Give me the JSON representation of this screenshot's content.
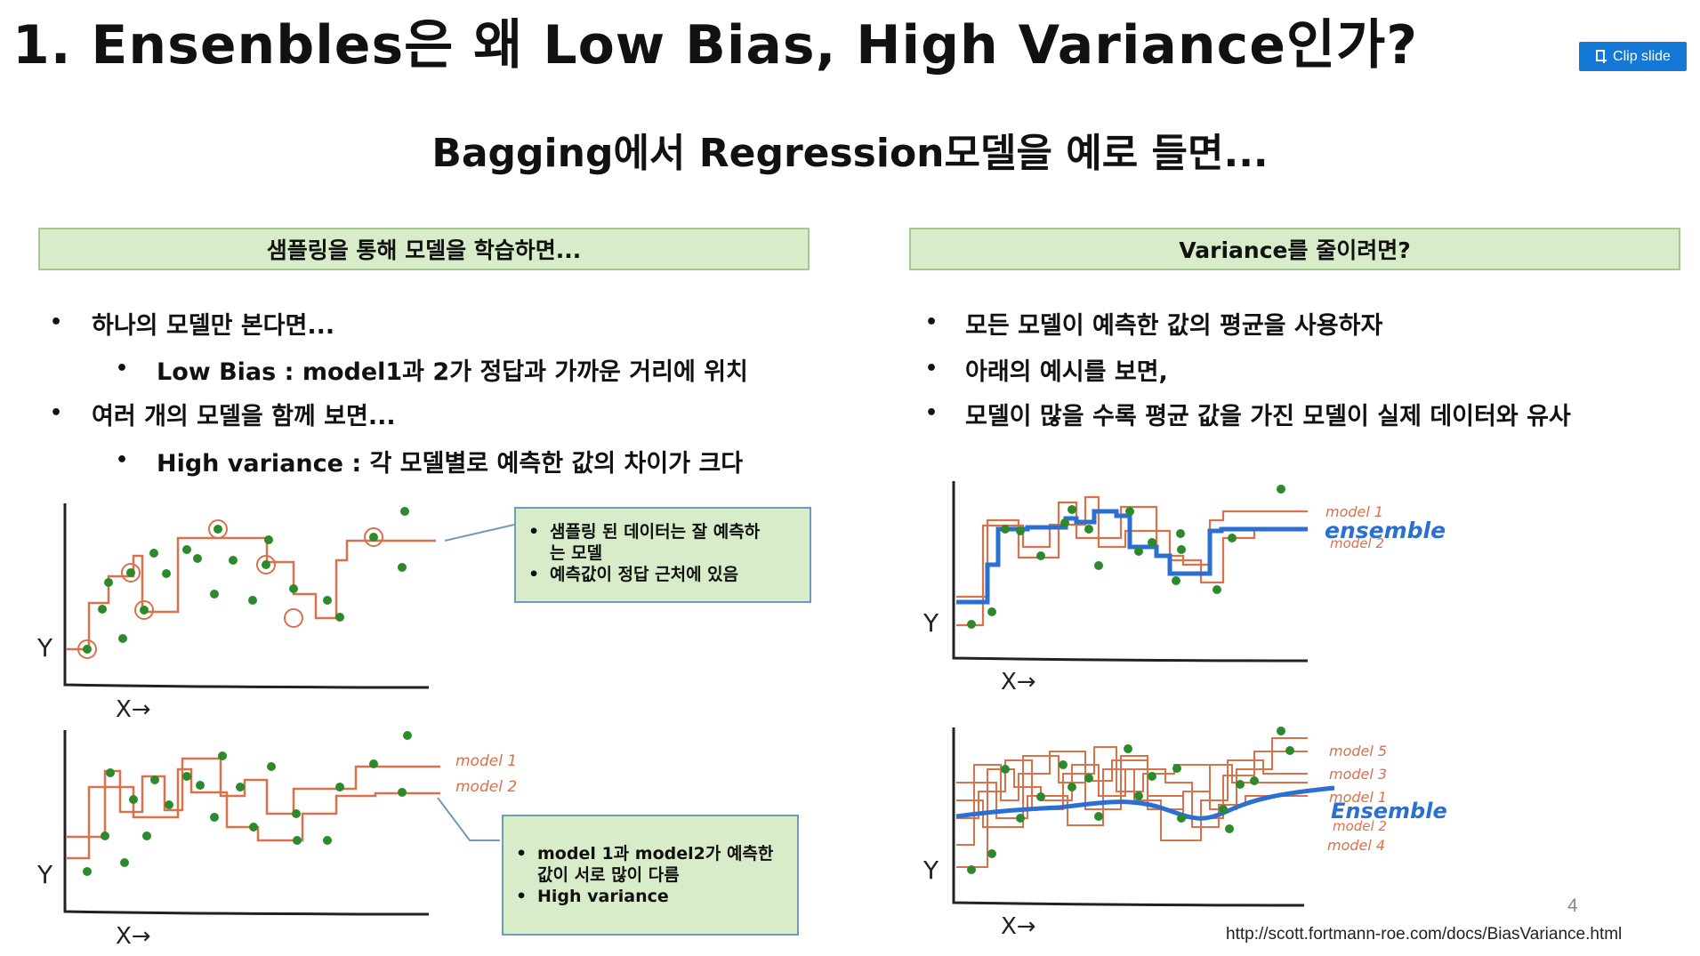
{
  "slide": {
    "title": "1. Ensenbles은 왜 Low Bias, High Variance인가?",
    "clip_button": "Clip slide",
    "subtitle": "Bagging에서 Regression모델을 예로 들면...",
    "left_header": "샘플링을 통해 모델을 학습하면...",
    "right_header": "Variance를 줄이려면?",
    "left_bullets": [
      "하나의 모델만 본다면...",
      "Low Bias : model1과 2가 정답과 가까운 거리에 위치",
      "여러 개의 모델을 함께 보면...",
      "High variance : 각 모델별로 예측한 값의 차이가 크다"
    ],
    "right_bullets": [
      "모든 모델이 예측한 값의 평균을 사용하자",
      "아래의 예시를 보면,",
      "모델이 많을 수록 평균 값을 가진 모델이 실제 데이터와 유사"
    ],
    "callout1": [
      "샘플링 된 데이터는 잘 예측하",
      "는 모델",
      "예측값이 정답 근처에 있음"
    ],
    "callout2": [
      "model 1과 model2가 예측한",
      "값이 서로 많이 다름",
      "High variance"
    ],
    "sketch_labels": {
      "y_axis": "Y",
      "x_axis": "X→",
      "bottom_left": [
        "model 1",
        "model 2"
      ],
      "top_right": [
        "model 1",
        "ensemble",
        "model 2"
      ],
      "bottom_right": [
        "model 5",
        "model 3",
        "model 1",
        "Ensemble",
        "model 2",
        "model 4"
      ]
    },
    "page_number": "4",
    "source": "http://scott.fortmann-roe.com/docs/BiasVariance.html",
    "colors": {
      "accent": "#1479d6",
      "header_bg": "#d8ecc9",
      "model_line": "#d9714a",
      "ensemble_line": "#2a6fd1",
      "point": "#2c8a2c"
    }
  }
}
